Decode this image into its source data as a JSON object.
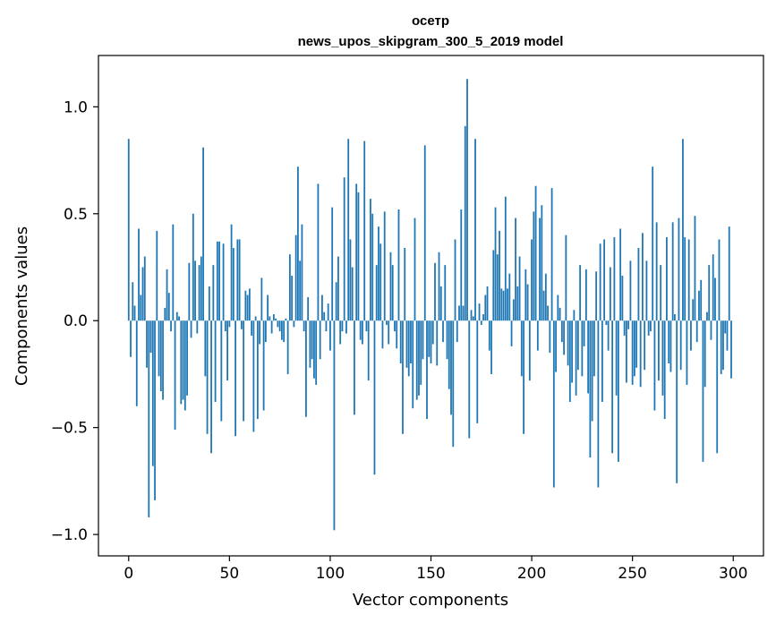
{
  "chart_data": {
    "type": "bar",
    "title": "осетр",
    "subtitle": "news_upos_skipgram_300_5_2019 model",
    "xlabel": "Vector components",
    "ylabel": "Components values",
    "xlim": [
      -15,
      315
    ],
    "ylim": [
      -1.1,
      1.24
    ],
    "xticks": [
      0,
      50,
      100,
      150,
      200,
      250,
      300
    ],
    "yticks": [
      -1.0,
      -0.5,
      0.0,
      0.5,
      1.0
    ],
    "xtick_labels": [
      "0",
      "50",
      "100",
      "150",
      "200",
      "250",
      "300"
    ],
    "ytick_labels": [
      "−1.0",
      "−0.5",
      "0.0",
      "0.5",
      "1.0"
    ],
    "bar_color": "#1f77b4",
    "grid": false,
    "legend": "none",
    "values": [
      0.85,
      -0.17,
      0.18,
      0.07,
      -0.4,
      0.43,
      0.12,
      0.25,
      0.3,
      -0.22,
      -0.92,
      -0.15,
      -0.68,
      -0.84,
      0.42,
      -0.26,
      -0.33,
      -0.37,
      0.06,
      0.24,
      0.13,
      -0.05,
      0.45,
      -0.51,
      0.04,
      0.02,
      -0.39,
      -0.37,
      -0.42,
      -0.35,
      0.27,
      -0.08,
      0.5,
      0.28,
      -0.06,
      0.26,
      0.3,
      0.81,
      -0.26,
      -0.53,
      0.16,
      -0.62,
      0.26,
      -0.38,
      0.37,
      0.37,
      -0.47,
      0.36,
      -0.05,
      -0.28,
      -0.03,
      0.45,
      0.34,
      -0.54,
      0.38,
      0.38,
      -0.04,
      -0.47,
      0.14,
      0.12,
      0.15,
      -0.07,
      -0.52,
      0.02,
      -0.46,
      -0.11,
      0.2,
      -0.42,
      -0.1,
      0.12,
      0.02,
      -0.06,
      0.03,
      0.01,
      -0.03,
      -0.05,
      -0.09,
      -0.1,
      0.01,
      -0.25,
      0.31,
      0.21,
      -0.03,
      0.4,
      0.72,
      0.28,
      0.45,
      -0.05,
      -0.45,
      0.11,
      -0.22,
      -0.18,
      -0.27,
      -0.3,
      0.64,
      -0.18,
      0.12,
      0.04,
      -0.05,
      0.08,
      -0.14,
      0.53,
      -0.98,
      0.18,
      0.3,
      -0.11,
      -0.05,
      0.67,
      -0.06,
      0.85,
      0.38,
      0.25,
      -0.44,
      0.64,
      0.6,
      -0.09,
      -0.11,
      0.84,
      -0.05,
      -0.28,
      0.57,
      0.5,
      -0.72,
      0.26,
      0.44,
      0.36,
      -0.13,
      0.51,
      -0.02,
      -0.11,
      0.32,
      0.26,
      -0.05,
      -0.13,
      0.52,
      -0.2,
      -0.53,
      0.34,
      -0.22,
      -0.26,
      -0.2,
      -0.41,
      0.48,
      -0.37,
      -0.35,
      -0.3,
      -0.18,
      0.82,
      -0.46,
      -0.17,
      -0.2,
      -0.11,
      0.27,
      -0.21,
      0.32,
      0.16,
      -0.1,
      0.26,
      -0.18,
      -0.32,
      -0.44,
      -0.59,
      0.38,
      -0.1,
      0.07,
      0.52,
      0.07,
      0.91,
      1.13,
      -0.55,
      0.05,
      0.02,
      0.85,
      -0.48,
      0.08,
      -0.02,
      0.03,
      0.12,
      0.16,
      -0.14,
      -0.25,
      0.33,
      0.53,
      0.31,
      0.42,
      0.15,
      0.14,
      0.58,
      0.15,
      0.22,
      -0.12,
      0.1,
      0.48,
      0.16,
      0.3,
      -0.26,
      -0.53,
      0.24,
      0.17,
      -0.28,
      0.38,
      0.51,
      0.63,
      -0.14,
      0.48,
      0.54,
      0.14,
      0.22,
      0.07,
      -0.15,
      0.62,
      -0.78,
      -0.24,
      0.12,
      0.06,
      -0.1,
      -0.16,
      0.4,
      -0.21,
      -0.38,
      -0.29,
      0.05,
      -0.35,
      -0.23,
      0.26,
      -0.26,
      -0.12,
      0.24,
      -0.34,
      -0.64,
      -0.47,
      -0.26,
      0.23,
      -0.78,
      0.36,
      -0.38,
      0.38,
      -0.02,
      -0.14,
      0.25,
      -0.62,
      0.39,
      -0.35,
      -0.66,
      0.43,
      0.21,
      -0.07,
      -0.29,
      -0.04,
      0.28,
      -0.3,
      -0.26,
      -0.22,
      0.34,
      -0.31,
      0.41,
      -0.23,
      0.28,
      -0.07,
      -0.05,
      0.72,
      -0.42,
      0.46,
      -0.28,
      0.26,
      -0.35,
      -0.46,
      0.39,
      -0.2,
      -0.24,
      0.46,
      0.03,
      -0.76,
      0.48,
      -0.23,
      0.85,
      0.39,
      -0.3,
      0.38,
      -0.14,
      0.1,
      0.49,
      -0.1,
      0.14,
      0.19,
      -0.66,
      -0.31,
      0.04,
      0.26,
      -0.09,
      0.31,
      0.2,
      -0.62,
      0.38,
      -0.25,
      -0.23,
      -0.06,
      -0.14,
      0.44,
      -0.27
    ]
  }
}
